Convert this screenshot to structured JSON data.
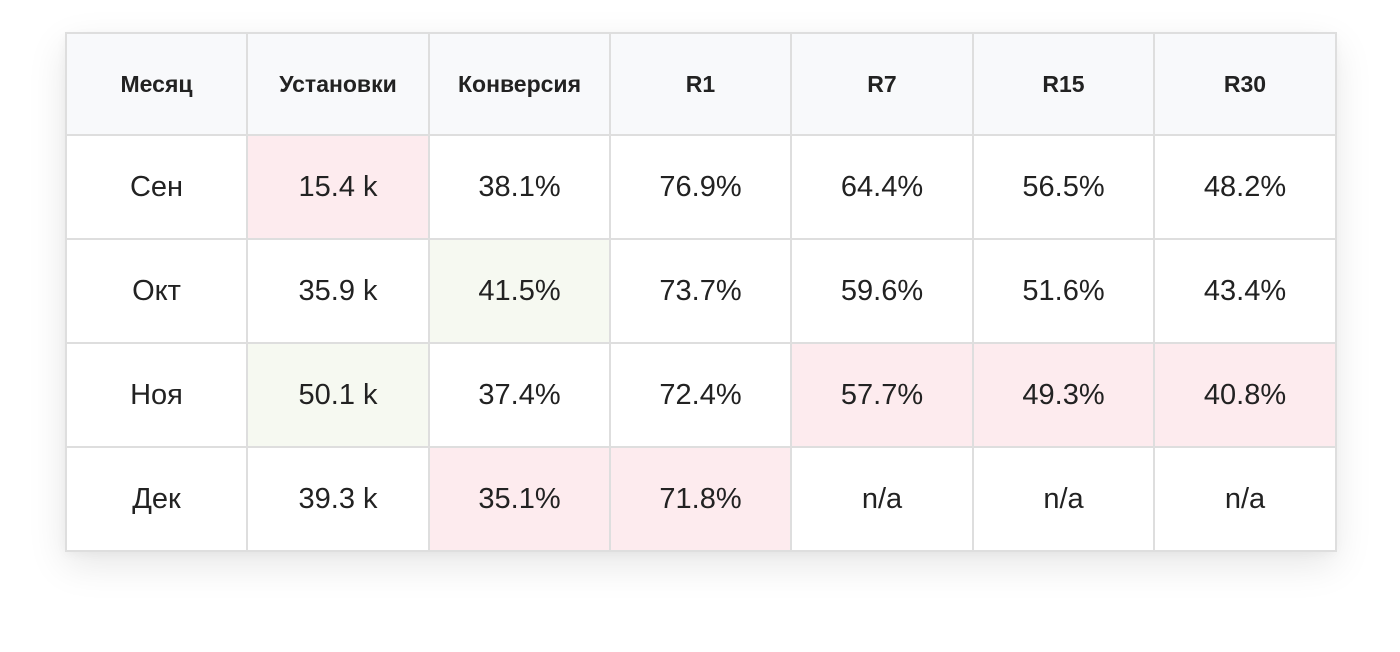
{
  "chart_data": {
    "type": "table",
    "columns": [
      "Месяц",
      "Установки",
      "Конверсия",
      "R1",
      "R7",
      "R15",
      "R30"
    ],
    "rows": [
      {
        "cells": [
          "Сен",
          "15.4 k",
          "38.1%",
          "76.9%",
          "64.4%",
          "56.5%",
          "48.2%"
        ],
        "highlight": [
          "",
          "bad",
          "",
          "",
          "",
          "",
          ""
        ]
      },
      {
        "cells": [
          "Окт",
          "35.9 k",
          "41.5%",
          "73.7%",
          "59.6%",
          "51.6%",
          "43.4%"
        ],
        "highlight": [
          "",
          "",
          "good",
          "",
          "",
          "",
          ""
        ]
      },
      {
        "cells": [
          "Ноя",
          "50.1 k",
          "37.4%",
          "72.4%",
          "57.7%",
          "49.3%",
          "40.8%"
        ],
        "highlight": [
          "",
          "good",
          "",
          "",
          "bad",
          "bad",
          "bad"
        ]
      },
      {
        "cells": [
          "Дек",
          "39.3 k",
          "35.1%",
          "71.8%",
          "n/a",
          "n/a",
          "n/a"
        ],
        "highlight": [
          "",
          "",
          "bad",
          "bad",
          "",
          "",
          ""
        ]
      }
    ],
    "colors": {
      "header_bg": "#f8f9fb",
      "bad_tint": "#fdebee",
      "good_tint": "#f6f9f1",
      "grid": "#dedede",
      "text": "#222222"
    }
  }
}
